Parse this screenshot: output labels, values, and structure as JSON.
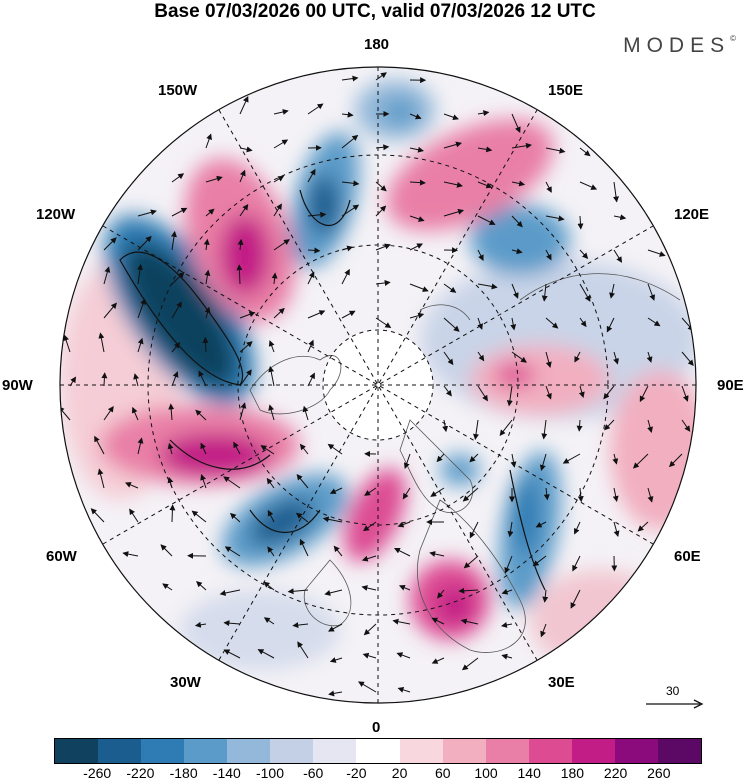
{
  "header": {
    "title": "Base 07/03/2026 00 UTC, valid 07/03/2026 12 UTC",
    "brand": "MODES",
    "brand_mark": "©"
  },
  "map": {
    "projection": "north-polar-stereographic",
    "longitude_labels": {
      "top": "180",
      "bottom": "0",
      "left": "90W",
      "right": "90E",
      "upper_left_1": "150W",
      "upper_left_2": "120W",
      "lower_left_1": "60W",
      "lower_left_2": "30W",
      "upper_right_1": "150E",
      "upper_right_2": "120E",
      "lower_right_1": "60E",
      "lower_right_2": "30E"
    },
    "reference_vector": {
      "label": "30",
      "value": 30
    }
  },
  "legend": {
    "tick_labels": [
      "-260",
      "-220",
      "-180",
      "-140",
      "-100",
      "-60",
      "-20",
      "20",
      "60",
      "100",
      "140",
      "180",
      "220",
      "260"
    ],
    "colors": [
      "#10425f",
      "#1b5d8f",
      "#2f7bb3",
      "#5b9bc9",
      "#93b8d9",
      "#c3d0e6",
      "#e6e6f2",
      "#ffffff",
      "#f8d8de",
      "#f2afc0",
      "#e97fa6",
      "#dd4c93",
      "#c21c86",
      "#8c0b7c",
      "#5c0966"
    ]
  }
}
